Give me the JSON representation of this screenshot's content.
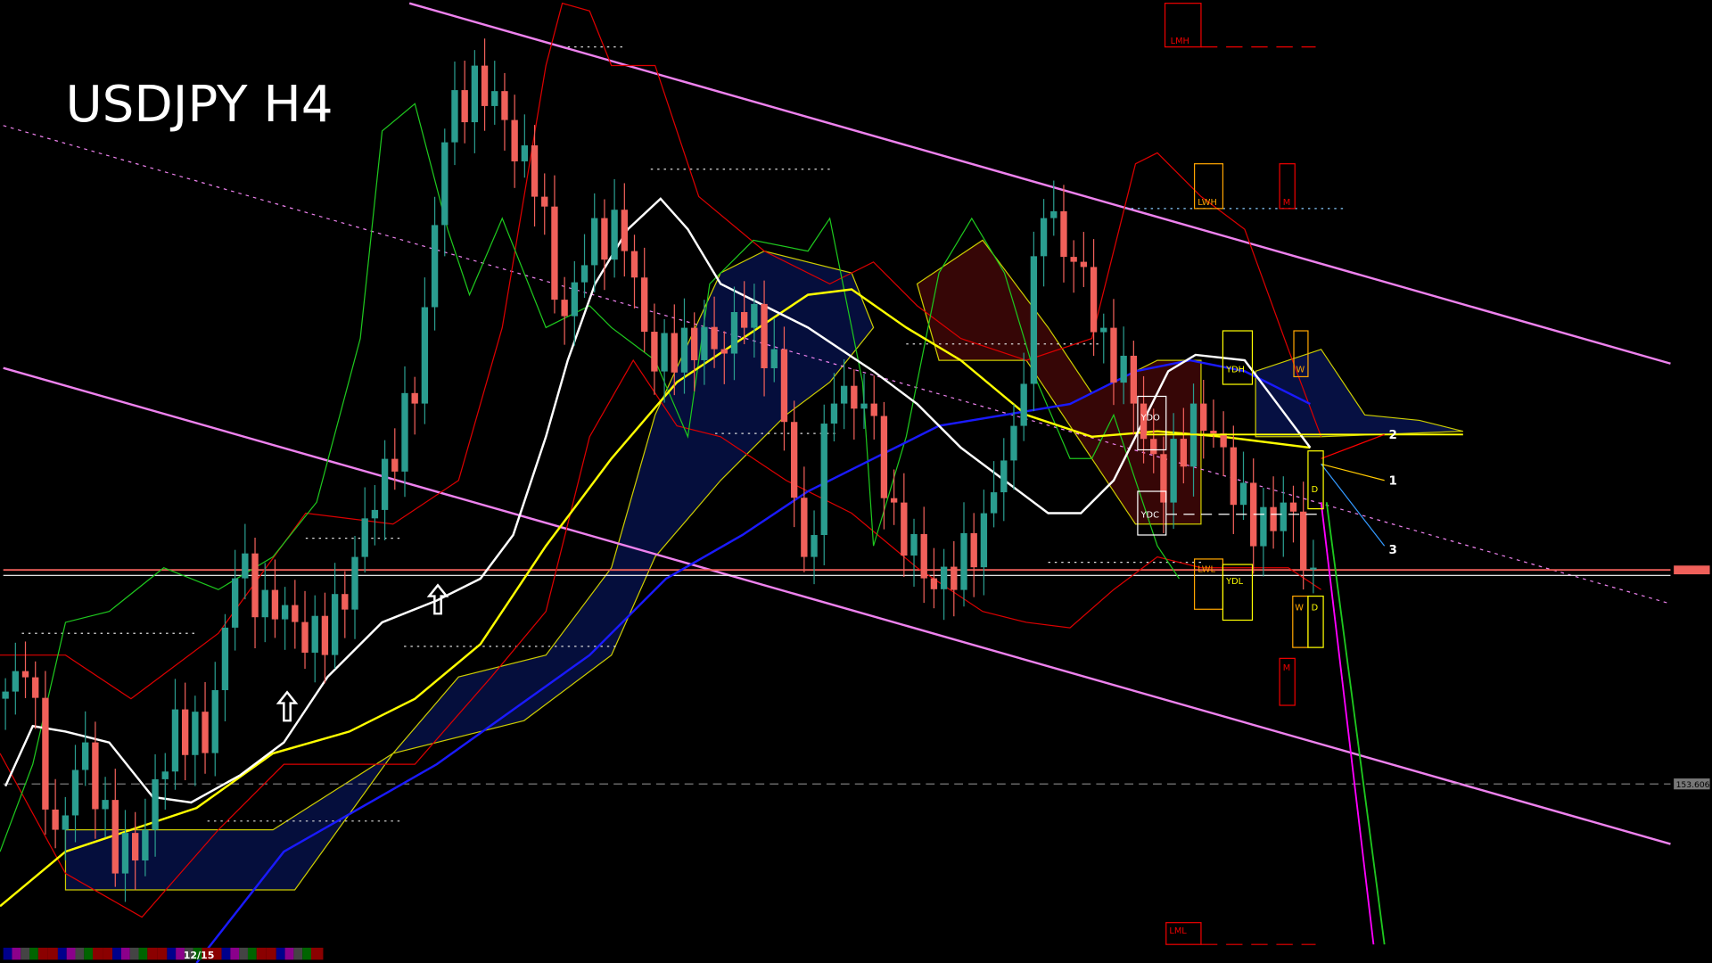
{
  "title": "USDJPY H4",
  "price_labels": {
    "current": "",
    "level": "153.606"
  },
  "timeline": {
    "date_label": "12/15"
  },
  "levels": {
    "lmh": "LMH",
    "lwh": "LWH",
    "m_top": "M",
    "ydh": "YDH",
    "w_top": "W",
    "ydo": "YDO",
    "ydc": "YDC",
    "d_top": "D",
    "lwl": "LWL",
    "ydl": "YDL",
    "w_bottom": "W",
    "d_bottom": "D",
    "m_bottom": "M",
    "lml": "LML"
  },
  "projections": {
    "p1": "1",
    "p2": "2",
    "p3": "3"
  },
  "colors": {
    "bull": "#2a9d8f",
    "bear": "#f0605a",
    "channel": "#ee82ee",
    "ma_fast": "#ffffff",
    "ma_mid": "#ffff00",
    "ma_slow": "#0000ff"
  },
  "chart_data": {
    "type": "candlestick",
    "symbol": "USDJPY",
    "timeframe": "H4",
    "reference_level": 153.606,
    "closes": [
      154.56,
      154.8,
      153.09,
      154.07,
      152.6,
      153.09,
      154.44,
      153.95,
      155.91,
      155.78,
      155.42,
      155.05,
      156.15,
      157.25,
      157.87,
      160.8,
      161.66,
      161.05,
      160.19,
      158.85,
      159.95,
      159.58,
      158.23,
      158.72,
      158.48,
      158.72,
      158.48,
      156.15,
      157.87,
      157.87,
      156.76,
      155.91,
      155.78,
      156.64,
      157.62,
      159.95,
      159.46,
      158.72,
      157.87,
      156.76,
      157.87,
      157.38,
      156.27,
      156.76,
      156.03
    ]
  }
}
